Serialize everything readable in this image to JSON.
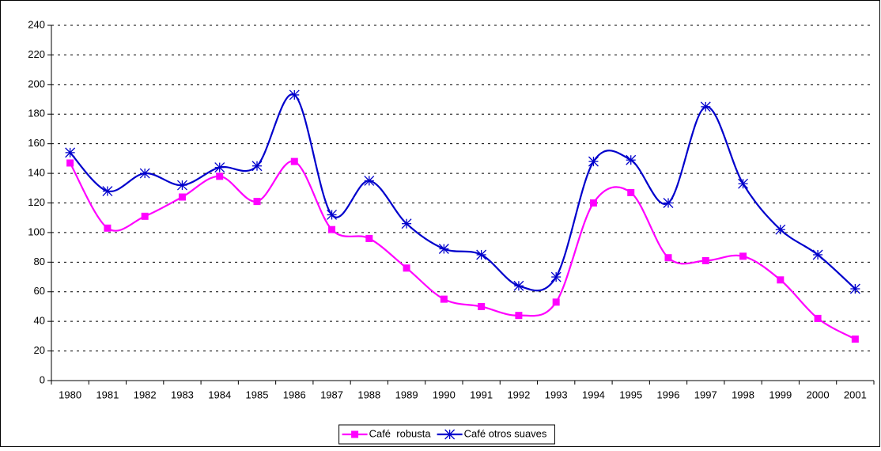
{
  "chart_data": {
    "type": "line",
    "categories": [
      "1980",
      "1981",
      "1982",
      "1983",
      "1984",
      "1985",
      "1986",
      "1987",
      "1988",
      "1989",
      "1990",
      "1991",
      "1992",
      "1993",
      "1994",
      "1995",
      "1996",
      "1997",
      "1998",
      "1999",
      "2000",
      "2001"
    ],
    "series": [
      {
        "name": "Café  robusta",
        "color": "#ff00ff",
        "marker": "square",
        "values": [
          147,
          103,
          111,
          124,
          138,
          121,
          148,
          102,
          96,
          76,
          55,
          50,
          44,
          53,
          120,
          127,
          83,
          81,
          84,
          68,
          42,
          28
        ]
      },
      {
        "name": "Café otros suaves",
        "color": "#0000cc",
        "marker": "star",
        "values": [
          154,
          128,
          140,
          132,
          144,
          145,
          193,
          112,
          135,
          106,
          89,
          85,
          64,
          70,
          148,
          149,
          120,
          185,
          133,
          102,
          85,
          62
        ]
      }
    ],
    "ylim": [
      0,
      240
    ],
    "yticks": [
      0,
      20,
      40,
      60,
      80,
      100,
      120,
      140,
      160,
      180,
      200,
      220,
      240
    ],
    "grid": true,
    "smooth": true,
    "legend": "bottom"
  }
}
